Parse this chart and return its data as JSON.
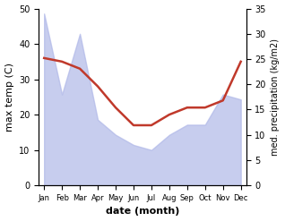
{
  "months": [
    "Jan",
    "Feb",
    "Mar",
    "Apr",
    "May",
    "Jun",
    "Jul",
    "Aug",
    "Sep",
    "Oct",
    "Nov",
    "Dec"
  ],
  "temp_line": [
    36,
    35,
    33,
    28,
    22,
    17,
    17,
    20,
    22,
    22,
    24,
    35
  ],
  "precip_fill": [
    34,
    18,
    30,
    13,
    10,
    8,
    7,
    10,
    12,
    12,
    18,
    17
  ],
  "temp_ylim": [
    0,
    50
  ],
  "precip_ylim": [
    0,
    35
  ],
  "fill_color": "#b0b8e8",
  "line_color": "#c0392b",
  "xlabel": "date (month)",
  "ylabel_left": "max temp (C)",
  "ylabel_right": "med. precipitation (kg/m2)"
}
